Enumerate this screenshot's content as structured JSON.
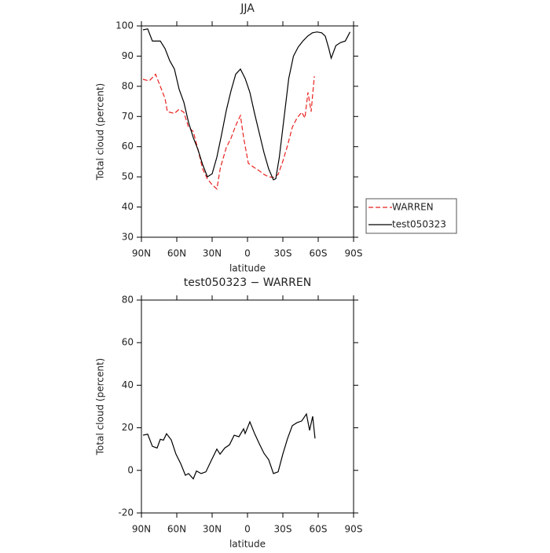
{
  "chart_data": [
    {
      "type": "line",
      "title": "JJA",
      "xlabel": "latitude",
      "ylabel": "Total cloud (percent)",
      "xlim": [
        90,
        -90
      ],
      "xticks": [
        {
          "value": 90,
          "label": "90N"
        },
        {
          "value": 60,
          "label": "60N"
        },
        {
          "value": 30,
          "label": "30N"
        },
        0,
        {
          "value": -30,
          "label": "30S"
        },
        {
          "value": -60,
          "label": "60S"
        },
        {
          "value": -90,
          "label": "90S"
        }
      ],
      "ylim": [
        30,
        100
      ],
      "yticks": [
        30,
        40,
        50,
        60,
        70,
        80,
        90,
        100
      ],
      "legend": "right",
      "series": [
        {
          "name": "WARREN",
          "color": "#e8221f",
          "line_style": "dashed",
          "x": [
            88.7,
            83.3,
            78,
            74,
            70,
            68,
            62,
            58,
            54,
            50,
            46,
            42,
            38,
            34,
            30,
            26,
            23,
            18,
            14,
            10,
            6,
            3.3,
            -0.7,
            -6,
            -10,
            -14,
            -18,
            -22,
            -26,
            -30,
            -34,
            -38,
            -42,
            -46,
            -48.7,
            -51.3,
            -54,
            -56.7
          ],
          "values": [
            82.3,
            81.8,
            84,
            80,
            76,
            71.6,
            71,
            72.4,
            71.4,
            66.4,
            65,
            59,
            52.6,
            49.3,
            47.4,
            46,
            53,
            59.7,
            62.8,
            67,
            70.3,
            63,
            54.5,
            53,
            52,
            50.8,
            50,
            49.8,
            50.8,
            55.2,
            60.4,
            66.4,
            69.5,
            71.4,
            69.5,
            78,
            71.6,
            83.3
          ]
        },
        {
          "name": "test050323",
          "color": "#000000",
          "line_style": "solid",
          "x": [
            88.7,
            84.7,
            80.7,
            74,
            70,
            66,
            62,
            58,
            54,
            50,
            46,
            42,
            38,
            34,
            30,
            26,
            22,
            18,
            14,
            10,
            6,
            2,
            -2,
            -6,
            -10,
            -14,
            -18,
            -22,
            -24,
            -27,
            -31,
            -35,
            -39,
            -43,
            -47,
            -51,
            -55,
            -59,
            -63,
            -66,
            -69,
            -71,
            -75,
            -79,
            -83,
            -87
          ],
          "values": [
            98.7,
            99,
            95,
            95,
            92.5,
            88.5,
            85.7,
            79,
            74.7,
            68,
            63,
            59,
            54,
            50,
            51,
            56.5,
            64,
            72,
            78.5,
            84,
            85.7,
            82.6,
            78,
            71,
            64.5,
            58,
            52.6,
            49,
            49.4,
            56.5,
            69.5,
            82.6,
            90,
            93,
            95,
            96.6,
            97.7,
            98,
            97.7,
            96.6,
            92.5,
            89.3,
            93.5,
            94.5,
            95,
            98
          ]
        }
      ]
    },
    {
      "type": "line",
      "title": "test050323 − WARREN",
      "xlabel": "latitude",
      "ylabel": "Total cloud (percent)",
      "xlim": [
        90,
        -90
      ],
      "xticks": [
        {
          "value": 90,
          "label": "90N"
        },
        {
          "value": 60,
          "label": "60N"
        },
        {
          "value": 30,
          "label": "30N"
        },
        0,
        {
          "value": -30,
          "label": "30S"
        },
        {
          "value": -60,
          "label": "60S"
        },
        {
          "value": -90,
          "label": "90S"
        }
      ],
      "ylim": [
        -20,
        80
      ],
      "yticks": [
        -20,
        0,
        20,
        40,
        60,
        80
      ],
      "series": [
        {
          "color": "#000000",
          "line_style": "solid",
          "x": [
            88.7,
            84.7,
            80.7,
            76.7,
            74,
            71.3,
            68.7,
            64.7,
            60.7,
            56.7,
            52.7,
            50,
            46,
            43.3,
            39.3,
            35.3,
            31.3,
            26,
            23.3,
            19.3,
            15.3,
            11.3,
            7.3,
            3.3,
            2,
            -2,
            -6,
            -10,
            -14,
            -18,
            -22,
            -26,
            -30,
            -34,
            -38,
            -42,
            -46,
            -50,
            -52.7,
            -55.3,
            -57.3
          ],
          "values": [
            16.5,
            17,
            11.3,
            10.5,
            14.6,
            14.2,
            17.2,
            14.3,
            7.6,
            3.2,
            -2.3,
            -1.5,
            -4,
            -0.3,
            -1.5,
            -0.7,
            4,
            10,
            7.6,
            10.5,
            12,
            16.5,
            15.8,
            19.5,
            17.3,
            22.8,
            17.3,
            12.5,
            8,
            5,
            -1.5,
            -0.7,
            7.7,
            15,
            21,
            22.4,
            23.2,
            26.5,
            18.8,
            25.4,
            15
          ]
        }
      ]
    }
  ]
}
